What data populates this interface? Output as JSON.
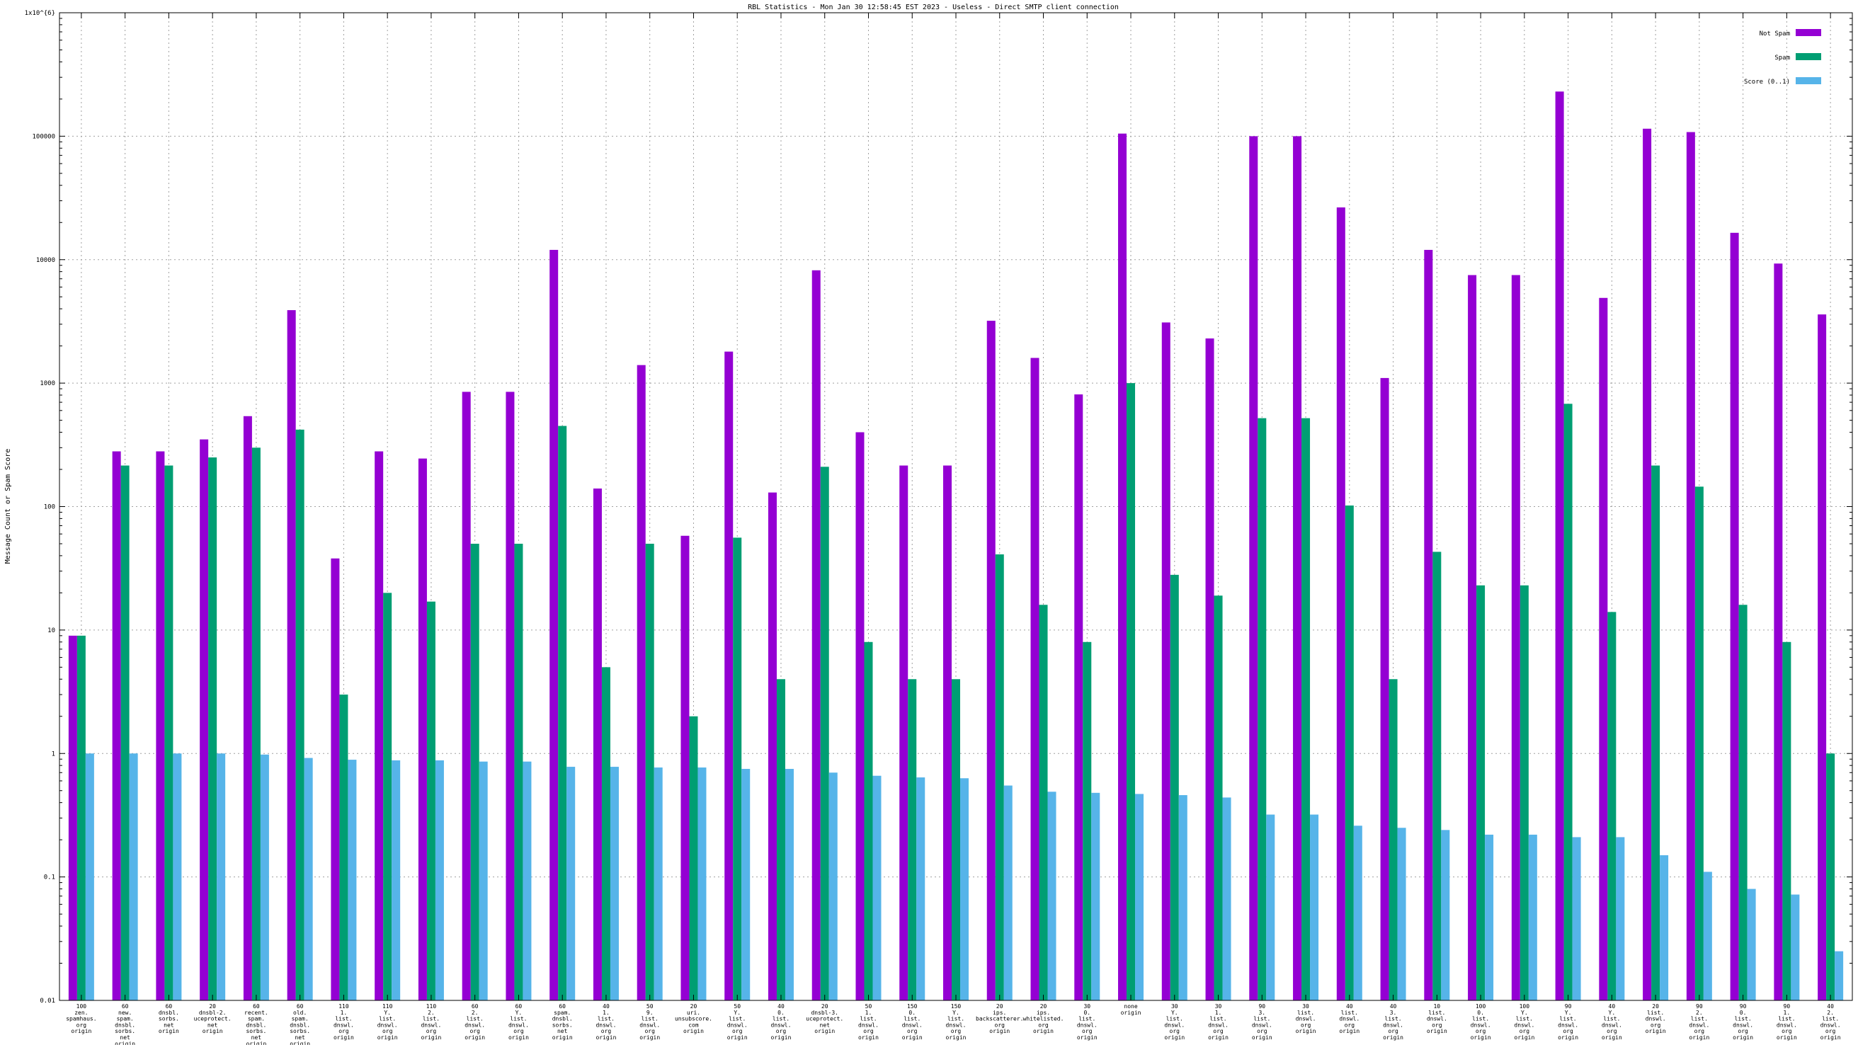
{
  "chart_data": {
    "type": "bar",
    "title": "RBL Statistics - Mon Jan 30 12:58:45 EST 2023 - Useless - Direct SMTP client connection",
    "ylabel": "Message Count or Spam Score",
    "yscale": "log",
    "ylim": [
      0.01,
      1000000
    ],
    "ytick_labels": [
      "0.01",
      "0.1",
      "1",
      "10",
      "100",
      "1000",
      "10000",
      "100000",
      "1x10^{6}"
    ],
    "grid": true,
    "legend_position": "top-right",
    "colors": {
      "not_spam": "#9400d3",
      "spam": "#009e73",
      "score": "#56b4e9"
    },
    "categories": [
      [
        "100",
        "zen.",
        "spamhaus.",
        "org",
        "origin"
      ],
      [
        "60",
        "new.",
        "spam.",
        "dnsbl.",
        "sorbs.",
        "net",
        "origin"
      ],
      [
        "60",
        "dnsbl.",
        "sorbs.",
        "net",
        "origin"
      ],
      [
        "20",
        "dnsbl-2.",
        "uceprotect.",
        "net",
        "origin"
      ],
      [
        "60",
        "recent.",
        "spam.",
        "dnsbl.",
        "sorbs.",
        "net",
        "origin"
      ],
      [
        "60",
        "old.",
        "spam.",
        "dnsbl.",
        "sorbs.",
        "net",
        "origin"
      ],
      [
        "110",
        "1.",
        "list.",
        "dnswl.",
        "org",
        "origin"
      ],
      [
        "110",
        "Y.",
        "list.",
        "dnswl.",
        "org",
        "origin"
      ],
      [
        "110",
        "2.",
        "list.",
        "dnswl.",
        "org",
        "origin"
      ],
      [
        "60",
        "2.",
        "list.",
        "dnswl.",
        "org",
        "origin"
      ],
      [
        "60",
        "Y.",
        "list.",
        "dnswl.",
        "org",
        "origin"
      ],
      [
        "60",
        "spam.",
        "dnsbl.",
        "sorbs.",
        "net",
        "origin"
      ],
      [
        "40",
        "1.",
        "list.",
        "dnswl.",
        "org",
        "origin"
      ],
      [
        "50",
        "9.",
        "list.",
        "dnswl.",
        "org",
        "origin"
      ],
      [
        "20",
        "uri.",
        "unsubscore.",
        "com",
        "origin"
      ],
      [
        "50",
        "Y.",
        "list.",
        "dnswl.",
        "org",
        "origin"
      ],
      [
        "40",
        "0.",
        "list.",
        "dnswl.",
        "org",
        "origin"
      ],
      [
        "20",
        "dnsbl-3.",
        "uceprotect.",
        "net",
        "origin"
      ],
      [
        "50",
        "1.",
        "list.",
        "dnswl.",
        "org",
        "origin"
      ],
      [
        "150",
        "0.",
        "list.",
        "dnswl.",
        "org",
        "origin"
      ],
      [
        "150",
        "Y.",
        "list.",
        "dnswl.",
        "org",
        "origin"
      ],
      [
        "20",
        "ips.",
        "backscatterer.",
        "org",
        "origin"
      ],
      [
        "20",
        "ips.",
        "whitelisted.",
        "org",
        "origin"
      ],
      [
        "30",
        "0.",
        "list.",
        "dnswl.",
        "org",
        "origin"
      ],
      [
        "none",
        "origin"
      ],
      [
        "30",
        "Y.",
        "list.",
        "dnswl.",
        "org",
        "origin"
      ],
      [
        "30",
        "1.",
        "list.",
        "dnswl.",
        "org",
        "origin"
      ],
      [
        "90",
        "3.",
        "list.",
        "dnswl.",
        "org",
        "origin"
      ],
      [
        "30",
        "list.",
        "dnswl.",
        "org",
        "origin"
      ],
      [
        "40",
        "list.",
        "dnswl.",
        "org",
        "origin"
      ],
      [
        "40",
        "3.",
        "list.",
        "dnswl.",
        "org",
        "origin"
      ],
      [
        "10",
        "list.",
        "dnswl.",
        "org",
        "origin"
      ],
      [
        "100",
        "0.",
        "list.",
        "dnswl.",
        "org",
        "origin"
      ],
      [
        "100",
        "Y.",
        "list.",
        "dnswl.",
        "org",
        "origin"
      ],
      [
        "90",
        "Y.",
        "list.",
        "dnswl.",
        "org",
        "origin"
      ],
      [
        "40",
        "Y.",
        "list.",
        "dnswl.",
        "org",
        "origin"
      ],
      [
        "20",
        "list.",
        "dnswl.",
        "org",
        "origin"
      ],
      [
        "90",
        "2.",
        "list.",
        "dnswl.",
        "org",
        "origin"
      ],
      [
        "90",
        "0.",
        "list.",
        "dnswl.",
        "org",
        "origin"
      ],
      [
        "90",
        "1.",
        "list.",
        "dnswl.",
        "org",
        "origin"
      ],
      [
        "40",
        "2.",
        "list.",
        "dnswl.",
        "org",
        "origin"
      ]
    ],
    "series": [
      {
        "name": "Not Spam",
        "values": [
          9,
          280,
          280,
          350,
          540,
          3900,
          38,
          280,
          245,
          850,
          850,
          12000,
          140,
          1400,
          58,
          1800,
          130,
          8200,
          400,
          215,
          215,
          3200,
          1600,
          810,
          105000,
          3100,
          2300,
          100000,
          100000,
          26500,
          1100,
          12000,
          7500,
          7500,
          230000,
          4900,
          115000,
          108000,
          16500,
          9300,
          3600
        ]
      },
      {
        "name": "Spam",
        "values": [
          9,
          215,
          215,
          250,
          300,
          420,
          3,
          20,
          17,
          50,
          50,
          450,
          5,
          50,
          2,
          56,
          4,
          210,
          8,
          4,
          4,
          41,
          16,
          8,
          1000,
          28,
          19,
          520,
          520,
          102,
          4,
          43,
          23,
          23,
          680,
          14,
          215,
          145,
          16,
          8,
          1
        ]
      },
      {
        "name": "Score (0..1)",
        "values": [
          1,
          1,
          1,
          1,
          0.98,
          0.92,
          0.89,
          0.88,
          0.88,
          0.86,
          0.86,
          0.78,
          0.78,
          0.77,
          0.77,
          0.75,
          0.75,
          0.7,
          0.66,
          0.64,
          0.63,
          0.55,
          0.49,
          0.48,
          0.47,
          0.46,
          0.44,
          0.32,
          0.32,
          0.26,
          0.25,
          0.24,
          0.22,
          0.22,
          0.21,
          0.21,
          0.15,
          0.11,
          0.08,
          0.072,
          0.025
        ]
      }
    ]
  }
}
